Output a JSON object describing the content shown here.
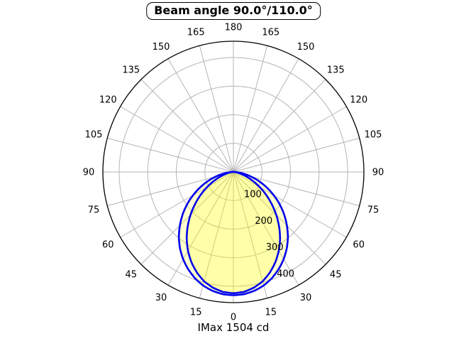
{
  "title": "Beam angle 90.0°/110.0°",
  "footer": "IMax 1504 cd",
  "colors": {
    "curve": "#0000ee",
    "lobe_fill": "rgba(255,255,0,0.19)",
    "grid": "#b5b5b5",
    "outer_ring": "#000000",
    "text": "#000000",
    "background": "#ffffff"
  },
  "chart_data": {
    "type": "line",
    "subtype": "polar-intensity-distribution",
    "title": "Beam angle 90.0°/110.0°",
    "annotation": "IMax 1504 cd",
    "imax_cd": 1504,
    "beam_angles_deg": [
      90.0,
      110.0
    ],
    "angle_ticks_deg": [
      0,
      15,
      30,
      45,
      60,
      75,
      90,
      105,
      120,
      135,
      150,
      165,
      180
    ],
    "angle_ticks_mirrored": true,
    "angle_grid_step_deg": 15,
    "radial_ticks": [
      100,
      200,
      300,
      400
    ],
    "radial_label_angle_deg": 22.5,
    "r_axis_max": 457,
    "grid": true,
    "zero_direction": "down",
    "series": [
      {
        "name": "beam-110deg-plane",
        "beam_angle_deg": 110.0,
        "peak_value": 431,
        "symmetric": true,
        "points": [
          [
            0,
            431
          ],
          [
            5,
            429
          ],
          [
            10,
            422
          ],
          [
            15,
            411
          ],
          [
            20,
            395
          ],
          [
            25,
            375
          ],
          [
            30,
            352
          ],
          [
            35,
            326
          ],
          [
            40,
            297
          ],
          [
            45,
            265
          ],
          [
            50,
            232
          ],
          [
            55,
            198
          ],
          [
            60,
            163
          ],
          [
            65,
            129
          ],
          [
            70,
            96
          ],
          [
            75,
            65
          ],
          [
            80,
            37
          ],
          [
            85,
            14
          ],
          [
            90,
            0
          ]
        ]
      },
      {
        "name": "beam-90deg-plane",
        "beam_angle_deg": 90.0,
        "peak_value": 424,
        "symmetric": true,
        "points": [
          [
            0,
            424
          ],
          [
            5,
            421
          ],
          [
            10,
            411
          ],
          [
            15,
            396
          ],
          [
            20,
            374
          ],
          [
            25,
            348
          ],
          [
            30,
            318
          ],
          [
            35,
            285
          ],
          [
            40,
            249
          ],
          [
            45,
            212
          ],
          [
            50,
            175
          ],
          [
            55,
            140
          ],
          [
            60,
            106
          ],
          [
            65,
            76
          ],
          [
            70,
            50
          ],
          [
            75,
            28
          ],
          [
            80,
            13
          ],
          [
            85,
            3
          ],
          [
            90,
            0
          ]
        ]
      }
    ]
  }
}
